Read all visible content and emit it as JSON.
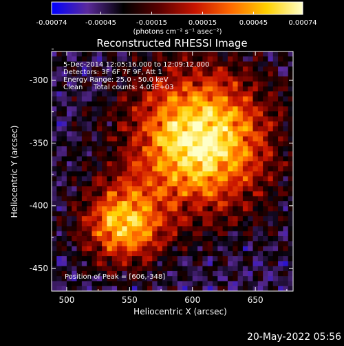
{
  "chart_data": {
    "type": "heatmap",
    "title": "Reconstructed RHESSI Image",
    "xlabel": "Heliocentric X (arcsec)",
    "ylabel": "Heliocentric Y (arcsec)",
    "xlim": [
      488,
      680
    ],
    "ylim": [
      -468,
      -277
    ],
    "xticks": [
      500,
      550,
      600,
      650
    ],
    "yticks": [
      -300,
      -350,
      -400,
      -450
    ],
    "colorbar": {
      "min": -0.00074,
      "max": 0.00074,
      "ticks": [
        "-0.00074",
        "-0.00045",
        "-0.00015",
        "0.00015",
        "0.00045",
        "0.00074"
      ],
      "unit_label": "(photons cm⁻² s⁻¹ asec⁻²)",
      "colors": [
        "#0000ff",
        "#5b2a9b",
        "#000000",
        "#5a0000",
        "#c81400",
        "#ff6a00",
        "#ffd000",
        "#ffffc8"
      ]
    },
    "annotations": [
      "5-Dec-2014 12:05:16.000 to 12:09:12.000",
      "Detectors: 3F 6F 7F 9F, Att 1",
      "Energy Range: 25.0 - 50.0 keV",
      "Clean     Total counts: 4.05E+03"
    ],
    "peak_label": "Position of Peak = [606,-348]",
    "sources": [
      {
        "x": 606,
        "y": -348,
        "amplitude": 0.00074
      },
      {
        "x": 545,
        "y": -415,
        "amplitude": 0.0005
      }
    ]
  },
  "footer": {
    "date": "20-May-2022 05:56"
  }
}
